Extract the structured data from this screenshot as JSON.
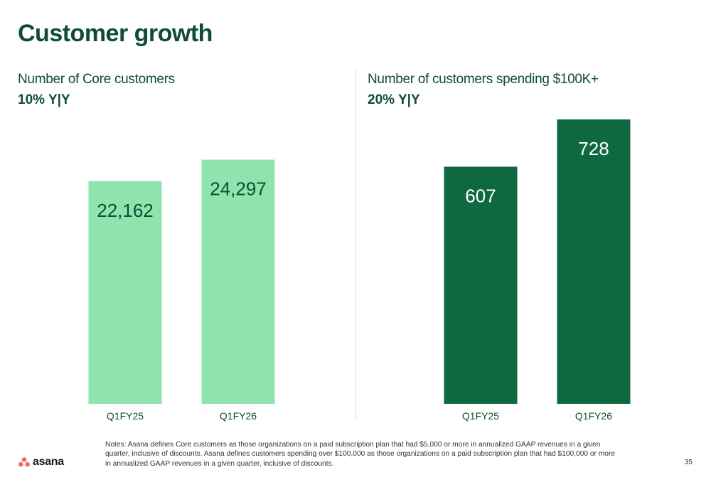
{
  "slide": {
    "title": "Customer growth",
    "notes": "Notes: Asana defines Core customers as those organizations on a paid subscription plan that had $5,000 or more in annualized GAAP revenues in a given quarter, inclusive of discounts. Asana defines customers spending over $100,000 as those organizations on a paid subscription plan that had $100,000 or more in annualized GAAP revenues in a given quarter, inclusive of discounts.",
    "logo_text": "asana",
    "page_number": "35"
  },
  "chart_data": [
    {
      "type": "bar",
      "title": "Number of Core customers",
      "subtitle": "10% Y|Y",
      "categories": [
        "Q1FY25",
        "Q1FY26"
      ],
      "values": [
        22162,
        24297
      ],
      "value_labels": [
        "22,162",
        "24,297"
      ],
      "color": "#8fe3ad",
      "label_color": "#0f4d33",
      "ylim": [
        0,
        28300
      ],
      "grid": false,
      "legend": "none"
    },
    {
      "type": "bar",
      "title": "Number of customers spending $100K+",
      "subtitle": "20% Y|Y",
      "categories": [
        "Q1FY25",
        "Q1FY26"
      ],
      "values": [
        607,
        728
      ],
      "value_labels": [
        "607",
        "728"
      ],
      "color": "#0e6940",
      "label_color": "#ffffff",
      "ylim": [
        0,
        728
      ],
      "grid": false,
      "legend": "none"
    }
  ]
}
